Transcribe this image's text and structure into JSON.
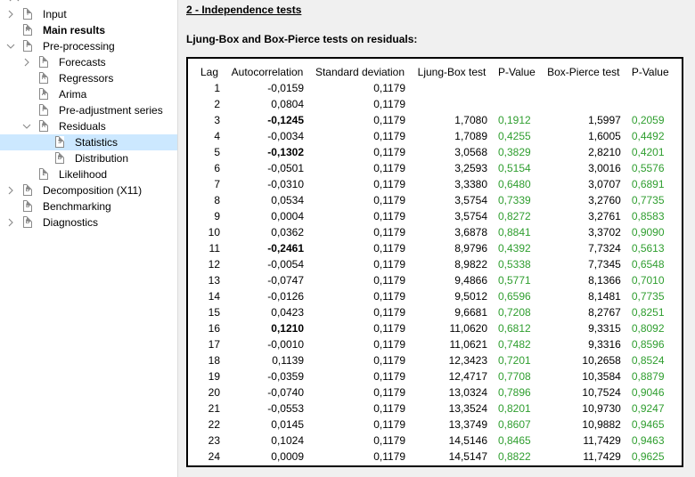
{
  "sidebar": {
    "items": [
      {
        "label": "Input",
        "level": 0,
        "expander": "chevron-right",
        "icon": "I",
        "bold": false,
        "selected": false
      },
      {
        "label": "Main results",
        "level": 0,
        "expander": "none",
        "icon": "M",
        "bold": true,
        "selected": false
      },
      {
        "label": "Pre-processing",
        "level": 0,
        "expander": "chevron-down",
        "icon": "P",
        "bold": false,
        "selected": false
      },
      {
        "label": "Forecasts",
        "level": 1,
        "expander": "chevron-right",
        "icon": "F",
        "bold": false,
        "selected": false
      },
      {
        "label": "Regressors",
        "level": 1,
        "expander": "none",
        "icon": "R",
        "bold": false,
        "selected": false
      },
      {
        "label": "Arima",
        "level": 1,
        "expander": "none",
        "icon": "A",
        "bold": false,
        "selected": false
      },
      {
        "label": "Pre-adjustment series",
        "level": 1,
        "expander": "none",
        "icon": "P",
        "bold": false,
        "selected": false
      },
      {
        "label": "Residuals",
        "level": 1,
        "expander": "chevron-down",
        "icon": "R",
        "bold": false,
        "selected": false
      },
      {
        "label": "Statistics",
        "level": 2,
        "expander": "none",
        "icon": "S",
        "bold": false,
        "selected": true
      },
      {
        "label": "Distribution",
        "level": 2,
        "expander": "none",
        "icon": "D",
        "bold": false,
        "selected": false
      },
      {
        "label": "Likelihood",
        "level": 1,
        "expander": "none",
        "icon": "L",
        "bold": false,
        "selected": false
      },
      {
        "label": "Decomposition (X11)",
        "level": 0,
        "expander": "chevron-right",
        "icon": "D",
        "bold": false,
        "selected": false
      },
      {
        "label": "Benchmarking",
        "level": 0,
        "expander": "none",
        "icon": "B",
        "bold": false,
        "selected": false
      },
      {
        "label": "Diagnostics",
        "level": 0,
        "expander": "chevron-right",
        "icon": "D",
        "bold": false,
        "selected": false
      }
    ]
  },
  "main": {
    "section_title": "2 - Independence tests",
    "subtitle": "Ljung-Box and Box-Pierce tests on residuals:",
    "table": {
      "headers": [
        "Lag",
        "Autocorrelation",
        "Standard deviation",
        "Ljung-Box test",
        "P-Value",
        "Box-Pierce test",
        "P-Value"
      ],
      "rows": [
        [
          "1",
          "-0,0159",
          "0,1179",
          "",
          "",
          "",
          ""
        ],
        [
          "2",
          "0,0804",
          "0,1179",
          "",
          "",
          "",
          ""
        ],
        [
          "3",
          "-0,1245",
          "0,1179",
          "1,7080",
          "0,1912",
          "1,5997",
          "0,2059"
        ],
        [
          "4",
          "-0,0034",
          "0,1179",
          "1,7089",
          "0,4255",
          "1,6005",
          "0,4492"
        ],
        [
          "5",
          "-0,1302",
          "0,1179",
          "3,0568",
          "0,3829",
          "2,8210",
          "0,4201"
        ],
        [
          "6",
          "-0,0501",
          "0,1179",
          "3,2593",
          "0,5154",
          "3,0016",
          "0,5576"
        ],
        [
          "7",
          "-0,0310",
          "0,1179",
          "3,3380",
          "0,6480",
          "3,0707",
          "0,6891"
        ],
        [
          "8",
          "0,0534",
          "0,1179",
          "3,5754",
          "0,7339",
          "3,2760",
          "0,7735"
        ],
        [
          "9",
          "0,0004",
          "0,1179",
          "3,5754",
          "0,8272",
          "3,2761",
          "0,8583"
        ],
        [
          "10",
          "0,0362",
          "0,1179",
          "3,6878",
          "0,8841",
          "3,3702",
          "0,9090"
        ],
        [
          "11",
          "-0,2461",
          "0,1179",
          "8,9796",
          "0,4392",
          "7,7324",
          "0,5613"
        ],
        [
          "12",
          "-0,0054",
          "0,1179",
          "8,9822",
          "0,5338",
          "7,7345",
          "0,6548"
        ],
        [
          "13",
          "-0,0747",
          "0,1179",
          "9,4866",
          "0,5771",
          "8,1366",
          "0,7010"
        ],
        [
          "14",
          "-0,0126",
          "0,1179",
          "9,5012",
          "0,6596",
          "8,1481",
          "0,7735"
        ],
        [
          "15",
          "0,0423",
          "0,1179",
          "9,6681",
          "0,7208",
          "8,2767",
          "0,8251"
        ],
        [
          "16",
          "0,1210",
          "0,1179",
          "11,0620",
          "0,6812",
          "9,3315",
          "0,8092"
        ],
        [
          "17",
          "-0,0010",
          "0,1179",
          "11,0621",
          "0,7482",
          "9,3316",
          "0,8596"
        ],
        [
          "18",
          "0,1139",
          "0,1179",
          "12,3423",
          "0,7201",
          "10,2658",
          "0,8524"
        ],
        [
          "19",
          "-0,0359",
          "0,1179",
          "12,4717",
          "0,7708",
          "10,3584",
          "0,8879"
        ],
        [
          "20",
          "-0,0740",
          "0,1179",
          "13,0324",
          "0,7896",
          "10,7524",
          "0,9046"
        ],
        [
          "21",
          "-0,0553",
          "0,1179",
          "13,3524",
          "0,8201",
          "10,9730",
          "0,9247"
        ],
        [
          "22",
          "0,0145",
          "0,1179",
          "13,3749",
          "0,8607",
          "10,9882",
          "0,9465"
        ],
        [
          "23",
          "0,1024",
          "0,1179",
          "14,5146",
          "0,8465",
          "11,7429",
          "0,9463"
        ],
        [
          "24",
          "0,0009",
          "0,1179",
          "14,5147",
          "0,8822",
          "11,7429",
          "0,9625"
        ]
      ],
      "bold_autocorr_rows": [
        3,
        5,
        11,
        16
      ]
    }
  },
  "colors": {
    "pvalue": "#2f9e2f",
    "selection": "#cce8ff",
    "content_bg": "#f0f0f0"
  }
}
